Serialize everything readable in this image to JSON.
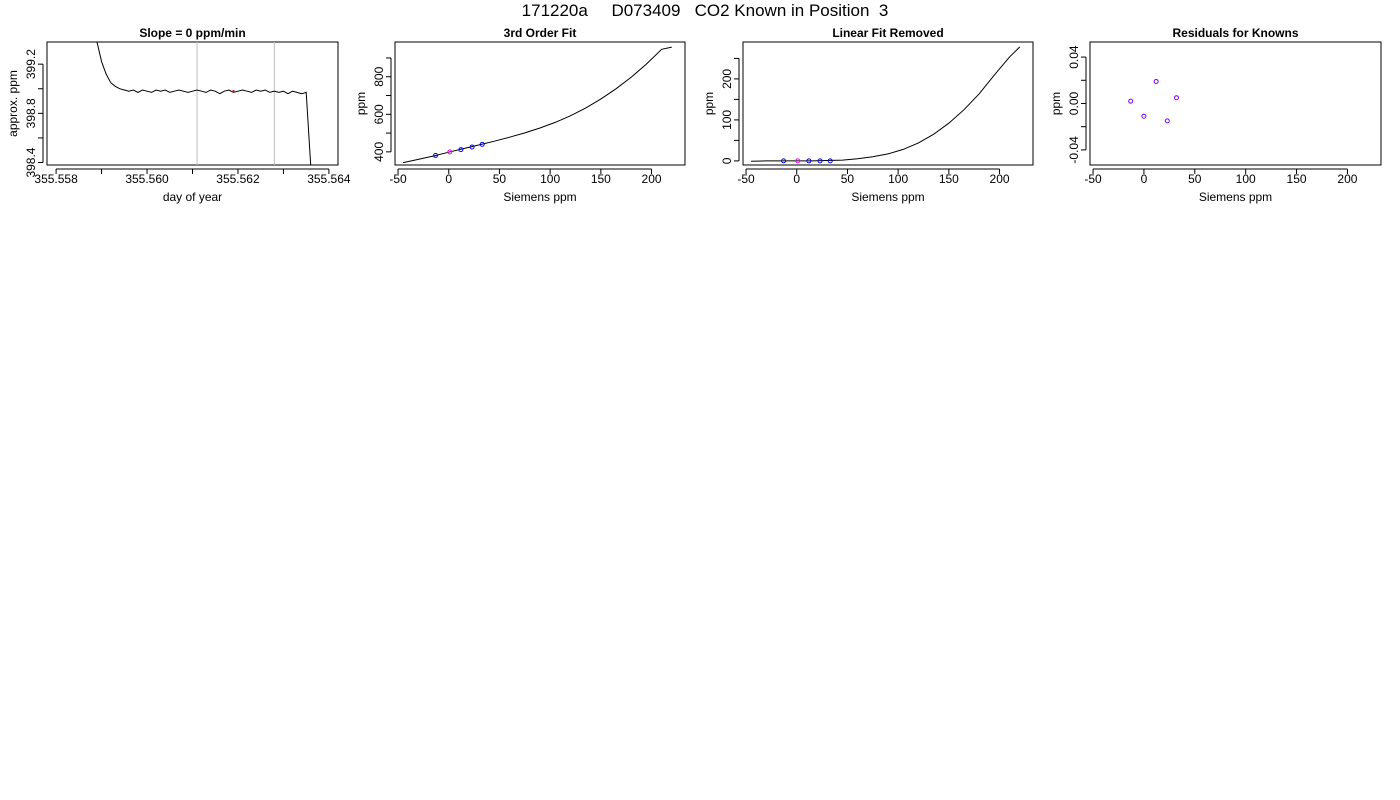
{
  "page": {
    "title": "171220a     D073409   CO2 Known in Position  3"
  },
  "colors": {
    "axis": "#000000",
    "curve": "#000000",
    "marker_primary": "#0000ff",
    "marker_secondary": "#ff00ff",
    "marker_residual": "#8000ff",
    "marker_highlight": "#ff0000",
    "window_line": "#bebebe"
  },
  "chart_data": [
    {
      "id": "timeseries",
      "type": "line",
      "title": "Slope =  0  ppm/min",
      "xlabel": "day of year",
      "ylabel": "approx. ppm",
      "xlim": [
        355.5578,
        355.5642
      ],
      "ylim": [
        398.38,
        399.38
      ],
      "xticks": [
        355.558,
        355.559,
        355.56,
        355.561,
        355.562,
        355.563,
        355.564
      ],
      "xtick_labels": [
        "355.558",
        "",
        "355.560",
        "",
        "355.562",
        "",
        "355.564"
      ],
      "yticks": [
        398.4,
        398.6,
        398.8,
        399.0,
        399.2
      ],
      "ytick_labels": [
        "398.4",
        "",
        "398.8",
        "",
        "399.2"
      ],
      "window_lines": [
        355.5611,
        355.5628
      ],
      "highlight_point": [
        355.5619,
        398.98
      ],
      "series": [
        {
          "x": [
            355.5589,
            355.559,
            355.5591,
            355.5592,
            355.5593,
            355.5594,
            355.5595,
            355.5596,
            355.5597,
            355.5598,
            355.5599,
            355.56,
            355.5601,
            355.5602,
            355.5603,
            355.5604,
            355.5605,
            355.5606,
            355.5607,
            355.5608,
            355.5609,
            355.561,
            355.5611,
            355.5612,
            355.5613,
            355.5614,
            355.5615,
            355.5616,
            355.5617,
            355.5618,
            355.5619,
            355.562,
            355.5621,
            355.5622,
            355.5623,
            355.5624,
            355.5625,
            355.5626,
            355.5627,
            355.5628,
            355.5629,
            355.563,
            355.5631,
            355.5632,
            355.5633,
            355.5634,
            355.5635,
            355.5636
          ],
          "y": [
            399.38,
            399.22,
            399.12,
            399.05,
            399.02,
            399.0,
            398.99,
            398.98,
            398.99,
            398.97,
            398.99,
            398.98,
            398.97,
            398.99,
            398.98,
            398.99,
            398.97,
            398.98,
            398.99,
            398.98,
            398.97,
            398.98,
            398.99,
            398.98,
            398.97,
            398.99,
            398.98,
            398.96,
            398.98,
            398.99,
            398.97,
            398.98,
            398.99,
            398.98,
            398.97,
            398.99,
            398.98,
            398.99,
            398.97,
            398.98,
            398.97,
            398.98,
            398.96,
            398.98,
            398.97,
            398.96,
            398.97,
            398.38
          ]
        }
      ]
    },
    {
      "id": "fit3",
      "type": "line",
      "title": "3rd Order Fit",
      "xlabel": "Siemens ppm",
      "ylabel": "ppm",
      "xlim": [
        -53,
        233
      ],
      "ylim": [
        330,
        985
      ],
      "xticks": [
        -50,
        0,
        50,
        100,
        150,
        200
      ],
      "xtick_labels": [
        "-50",
        "0",
        "50",
        "100",
        "150",
        "200"
      ],
      "yticks": [
        400,
        500,
        600,
        700,
        800,
        900
      ],
      "ytick_labels": [
        "400",
        "",
        "600",
        "",
        "800",
        ""
      ],
      "curve": {
        "x": [
          -45,
          -30,
          -15,
          0,
          15,
          30,
          45,
          60,
          75,
          90,
          105,
          120,
          135,
          150,
          165,
          180,
          195,
          210,
          220
        ],
        "y": [
          343,
          360,
          378,
          398,
          418,
          437,
          457,
          478,
          501,
          527,
          557,
          592,
          633,
          681,
          736,
          798,
          868,
          946,
          958
        ]
      },
      "points": [
        {
          "x": -13,
          "y": 381,
          "color": "marker_primary"
        },
        {
          "x": 1,
          "y": 399,
          "color": "marker_secondary"
        },
        {
          "x": 12,
          "y": 412,
          "color": "marker_primary"
        },
        {
          "x": 23,
          "y": 426,
          "color": "marker_primary"
        },
        {
          "x": 33,
          "y": 440,
          "color": "marker_primary"
        }
      ]
    },
    {
      "id": "linremoved",
      "type": "line",
      "title": "Linear Fit Removed",
      "xlabel": "Siemens ppm",
      "ylabel": "ppm",
      "xlim": [
        -53,
        233
      ],
      "ylim": [
        -10,
        290
      ],
      "xticks": [
        -50,
        0,
        50,
        100,
        150,
        200
      ],
      "xtick_labels": [
        "-50",
        "0",
        "50",
        "100",
        "150",
        "200"
      ],
      "yticks": [
        0,
        50,
        100,
        150,
        200,
        250
      ],
      "ytick_labels": [
        "0",
        "",
        "100",
        "",
        "200",
        ""
      ],
      "curve": {
        "x": [
          -45,
          -30,
          -15,
          0,
          15,
          30,
          45,
          60,
          75,
          90,
          105,
          120,
          135,
          150,
          165,
          180,
          195,
          210,
          220
        ],
        "y": [
          -1,
          0,
          0,
          0,
          0,
          1,
          2,
          5,
          10,
          17,
          28,
          44,
          65,
          92,
          125,
          164,
          210,
          254,
          278
        ]
      },
      "points": [
        {
          "x": -13,
          "y": 0,
          "color": "marker_primary"
        },
        {
          "x": 1,
          "y": 0,
          "color": "marker_secondary"
        },
        {
          "x": 12,
          "y": 0,
          "color": "marker_primary"
        },
        {
          "x": 23,
          "y": 0,
          "color": "marker_primary"
        },
        {
          "x": 33,
          "y": 0,
          "color": "marker_primary"
        }
      ]
    },
    {
      "id": "residuals",
      "type": "scatter",
      "title": "Residuals for Knowns",
      "xlabel": "Siemens ppm",
      "ylabel": "ppm",
      "xlim": [
        -53,
        233
      ],
      "ylim": [
        -0.053,
        0.053
      ],
      "xticks": [
        -50,
        0,
        50,
        100,
        150,
        200
      ],
      "xtick_labels": [
        "-50",
        "0",
        "50",
        "100",
        "150",
        "200"
      ],
      "yticks": [
        -0.04,
        -0.02,
        0.0,
        0.02,
        0.04
      ],
      "ytick_labels": [
        "-0.04",
        "",
        "0.00",
        "",
        "0.04"
      ],
      "points": [
        {
          "x": -13,
          "y": 0.002,
          "color": "marker_residual"
        },
        {
          "x": 0,
          "y": -0.011,
          "color": "marker_residual"
        },
        {
          "x": 12,
          "y": 0.019,
          "color": "marker_residual"
        },
        {
          "x": 23,
          "y": -0.015,
          "color": "marker_residual"
        },
        {
          "x": 32,
          "y": 0.005,
          "color": "marker_residual"
        }
      ]
    }
  ]
}
